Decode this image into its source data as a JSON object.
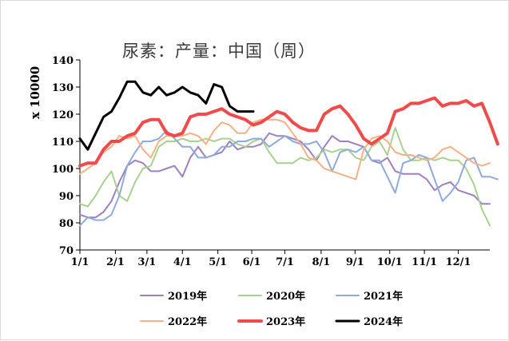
{
  "chart_data": {
    "type": "line",
    "title": "尿素：产量：中国（周）",
    "xlabel": "",
    "ylabel": "x 10000",
    "ylim": [
      70,
      140
    ],
    "xlim": [
      1,
      53
    ],
    "yticks": [
      70,
      80,
      90,
      100,
      110,
      120,
      130,
      140
    ],
    "xticks": [
      {
        "pos": 1,
        "label": "1/1"
      },
      {
        "pos": 5.5,
        "label": "2/1"
      },
      {
        "pos": 9.5,
        "label": "3/1"
      },
      {
        "pos": 14,
        "label": "4/1"
      },
      {
        "pos": 18.5,
        "label": "5/1"
      },
      {
        "pos": 22.8,
        "label": "6/1"
      },
      {
        "pos": 27,
        "label": "7/1"
      },
      {
        "pos": 31.6,
        "label": "8/1"
      },
      {
        "pos": 35.9,
        "label": "9/1"
      },
      {
        "pos": 40.3,
        "label": "10/1"
      },
      {
        "pos": 44.7,
        "label": "11/1"
      },
      {
        "pos": 49,
        "label": "12/1"
      }
    ],
    "grid": false,
    "legend_position": "bottom",
    "series": [
      {
        "name": "2019年",
        "color": "#9e7fc1",
        "width": 2,
        "values": [
          83,
          82,
          82,
          84,
          88,
          95,
          101,
          103,
          102,
          99,
          99,
          100,
          101,
          97,
          104,
          108,
          104,
          105,
          106,
          110,
          107,
          108,
          108,
          109,
          113,
          112,
          112,
          111,
          110,
          107,
          103,
          108,
          112,
          110,
          110,
          109,
          108,
          103,
          102,
          104,
          99,
          98,
          98,
          98,
          96,
          92,
          94,
          95,
          92,
          91,
          90,
          87,
          87
        ]
      },
      {
        "name": "2020年",
        "color": "#a9d18e",
        "width": 2,
        "values": [
          87,
          86,
          90,
          95,
          99,
          90,
          88,
          95,
          100,
          101,
          108,
          110,
          110,
          111,
          110,
          110,
          111,
          110,
          111,
          111,
          109,
          108,
          110,
          111,
          106,
          102,
          102,
          102,
          104,
          103,
          104,
          107,
          106,
          107,
          107,
          104,
          103,
          108,
          110,
          105,
          115,
          107,
          103,
          103,
          104,
          103,
          104,
          103,
          103,
          100,
          94,
          85,
          79
        ]
      },
      {
        "name": "2021年",
        "color": "#8faadc",
        "width": 2,
        "values": [
          79,
          82,
          81,
          81,
          83,
          90,
          101,
          106,
          110,
          110,
          111,
          114,
          111,
          108,
          108,
          104,
          104,
          105,
          108,
          108,
          110,
          110,
          111,
          111,
          108,
          110,
          112,
          110,
          109,
          109,
          110,
          106,
          99,
          106,
          107,
          106,
          108,
          103,
          103,
          97,
          91,
          102,
          103,
          105,
          104,
          96,
          88,
          91,
          95,
          103,
          104,
          97,
          97,
          96
        ]
      },
      {
        "name": "2022年",
        "color": "#f4b183",
        "width": 2,
        "values": [
          98,
          100,
          102,
          106,
          108,
          112,
          111,
          112,
          107,
          104,
          110,
          112,
          112,
          112,
          113,
          112,
          109,
          114,
          117,
          116,
          113,
          113,
          117,
          118,
          118,
          118,
          117,
          113,
          109,
          104,
          103,
          100,
          99,
          98,
          97,
          96,
          107,
          111,
          112,
          110,
          106,
          105,
          105,
          104,
          103,
          104,
          107,
          108,
          106,
          104,
          102,
          101,
          102
        ]
      },
      {
        "name": "2023年",
        "color": "#f04b4b",
        "width": 4,
        "values": [
          101,
          102,
          102,
          107,
          110,
          110,
          112,
          113,
          117,
          118,
          118,
          113,
          112,
          113,
          119,
          120,
          120,
          121,
          122,
          120,
          119,
          118,
          116,
          117,
          119,
          121,
          120,
          117,
          115,
          114,
          114,
          120,
          122,
          123,
          120,
          116,
          111,
          109,
          111,
          113,
          121,
          122,
          124,
          124,
          125,
          126,
          123,
          124,
          124,
          125,
          123,
          124,
          117,
          109
        ]
      },
      {
        "name": "2024年",
        "color": "#000000",
        "width": 3,
        "values": [
          111,
          107,
          113,
          119,
          121,
          126,
          132,
          132,
          128,
          127,
          130,
          127,
          128,
          130,
          128,
          127,
          124,
          131,
          130,
          123,
          121,
          121,
          121
        ]
      }
    ]
  }
}
